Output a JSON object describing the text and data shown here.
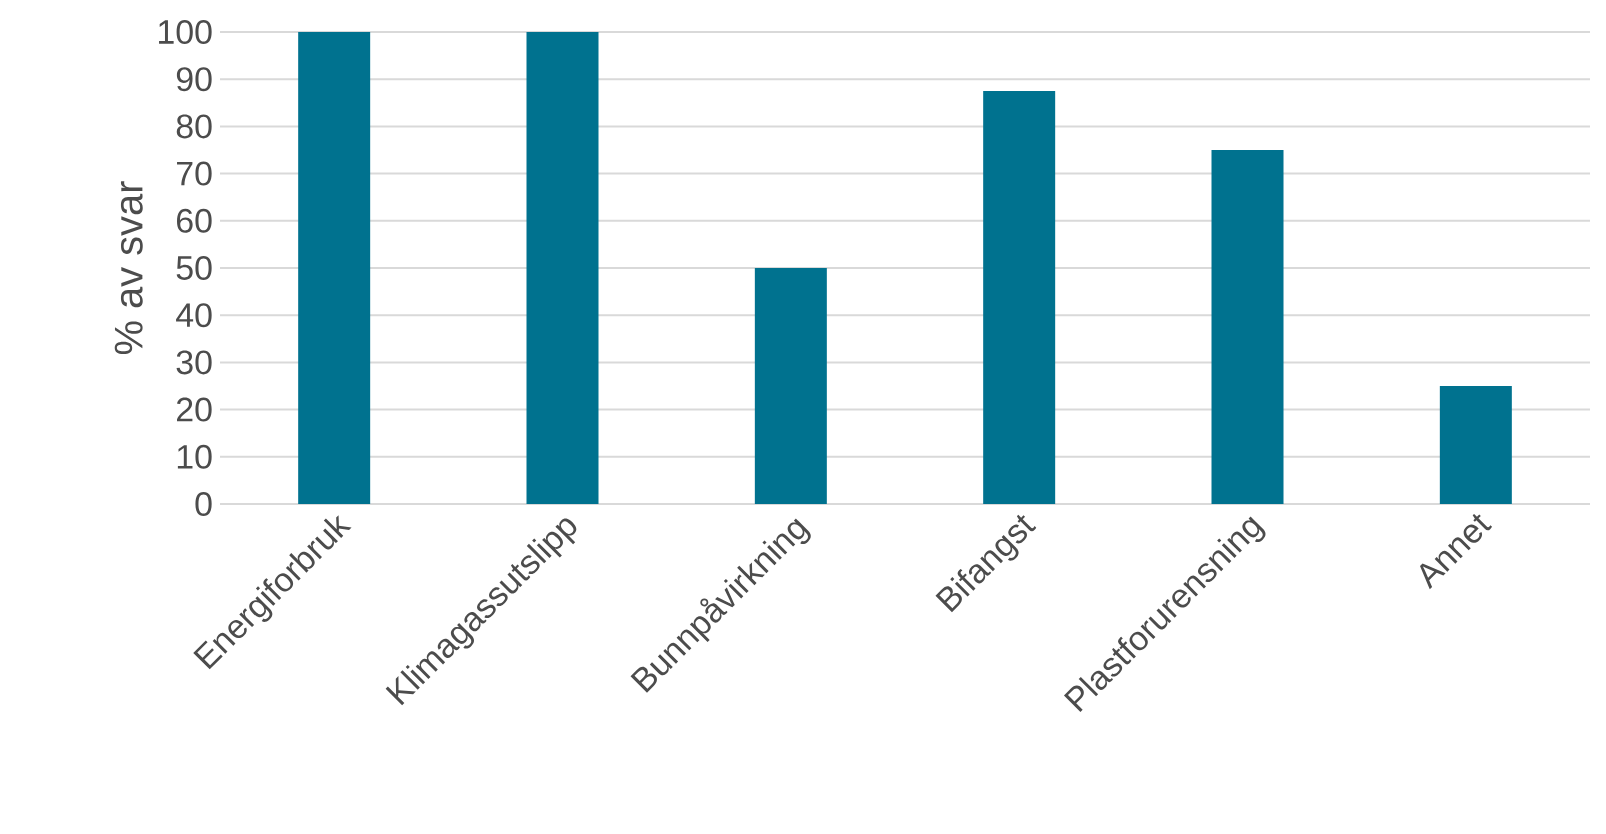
{
  "chart_data": {
    "type": "bar",
    "ylabel": "% av svar",
    "categories": [
      "Energiforbruk",
      "Klimagassutslipp",
      "Bunnpåvirkning",
      "Bifangst",
      "Plastforurensning",
      "Annet"
    ],
    "values": [
      100,
      100,
      50,
      87.5,
      75,
      25
    ],
    "color": "#00728f",
    "ylim": [
      0,
      100
    ],
    "yticks": [
      0,
      10,
      20,
      30,
      40,
      50,
      60,
      70,
      80,
      90,
      100
    ],
    "grid": "y"
  }
}
